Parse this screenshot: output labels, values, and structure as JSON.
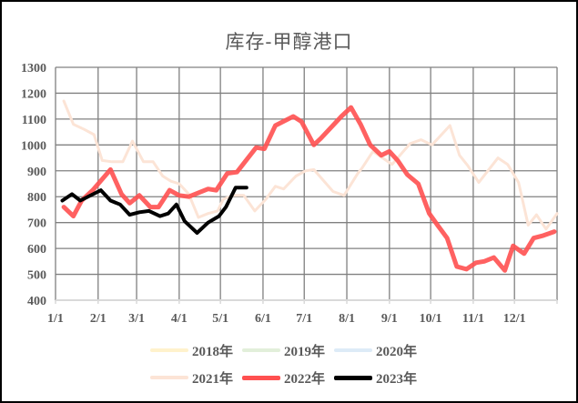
{
  "chart_data": {
    "type": "line",
    "title": "库存-甲醇港口",
    "xlabel": "",
    "ylabel": "",
    "ylim": [
      400,
      1300
    ],
    "yticks": [
      400,
      500,
      600,
      700,
      800,
      900,
      1000,
      1100,
      1200,
      1300
    ],
    "xticks": [
      "1/1",
      "2/1",
      "3/1",
      "4/1",
      "5/1",
      "6/1",
      "7/1",
      "8/1",
      "9/1",
      "10/1",
      "11/1",
      "12/1"
    ],
    "xtick_days": [
      0,
      31,
      59,
      90,
      120,
      151,
      181,
      212,
      243,
      273,
      304,
      334
    ],
    "x_unit": "day_of_year",
    "grid": true,
    "legend_position": "bottom",
    "series": [
      {
        "name": "2018年",
        "color": "#FFF2CC",
        "width": 3,
        "points": []
      },
      {
        "name": "2019年",
        "color": "#E2EFDA",
        "width": 3,
        "points": []
      },
      {
        "name": "2020年",
        "color": "#DDEBF7",
        "width": 3,
        "points": []
      },
      {
        "name": "2021年",
        "color": "#FCE4D6",
        "width": 3,
        "points": [
          [
            6,
            1170
          ],
          [
            13,
            1080
          ],
          [
            21,
            1060
          ],
          [
            28,
            1040
          ],
          [
            34,
            940
          ],
          [
            41,
            935
          ],
          [
            49,
            935
          ],
          [
            56,
            1015
          ],
          [
            64,
            935
          ],
          [
            71,
            935
          ],
          [
            78,
            880
          ],
          [
            84,
            860
          ],
          [
            90,
            850
          ],
          [
            97,
            810
          ],
          [
            104,
            720
          ],
          [
            111,
            735
          ],
          [
            118,
            745
          ],
          [
            122,
            790
          ],
          [
            129,
            805
          ],
          [
            137,
            805
          ],
          [
            145,
            745
          ],
          [
            153,
            790
          ],
          [
            160,
            840
          ],
          [
            166,
            830
          ],
          [
            175,
            880
          ],
          [
            182,
            900
          ],
          [
            188,
            905
          ],
          [
            202,
            820
          ],
          [
            210,
            805
          ],
          [
            220,
            890
          ],
          [
            223,
            910
          ],
          [
            231,
            975
          ],
          [
            245,
            925
          ],
          [
            258,
            1005
          ],
          [
            266,
            1020
          ],
          [
            274,
            1000
          ],
          [
            287,
            1075
          ],
          [
            294,
            960
          ],
          [
            300,
            920
          ],
          [
            308,
            855
          ],
          [
            322,
            950
          ],
          [
            329,
            925
          ],
          [
            337,
            855
          ],
          [
            344,
            690
          ],
          [
            350,
            730
          ],
          [
            357,
            675
          ],
          [
            365,
            735
          ]
        ]
      },
      {
        "name": "2022年",
        "color": "#FF5050",
        "width": 5,
        "points": [
          [
            6,
            760
          ],
          [
            13,
            725
          ],
          [
            19,
            785
          ],
          [
            27,
            825
          ],
          [
            40,
            905
          ],
          [
            48,
            810
          ],
          [
            54,
            775
          ],
          [
            61,
            805
          ],
          [
            69,
            760
          ],
          [
            75,
            760
          ],
          [
            83,
            825
          ],
          [
            90,
            805
          ],
          [
            97,
            800
          ],
          [
            111,
            830
          ],
          [
            117,
            825
          ],
          [
            125,
            890
          ],
          [
            132,
            895
          ],
          [
            146,
            990
          ],
          [
            152,
            985
          ],
          [
            160,
            1075
          ],
          [
            173,
            1110
          ],
          [
            179,
            1090
          ],
          [
            188,
            1000
          ],
          [
            193,
            1025
          ],
          [
            208,
            1110
          ],
          [
            215,
            1145
          ],
          [
            222,
            1080
          ],
          [
            229,
            1000
          ],
          [
            237,
            960
          ],
          [
            243,
            975
          ],
          [
            249,
            940
          ],
          [
            256,
            885
          ],
          [
            264,
            850
          ],
          [
            272,
            735
          ],
          [
            278,
            690
          ],
          [
            285,
            640
          ],
          [
            292,
            530
          ],
          [
            299,
            520
          ],
          [
            306,
            545
          ],
          [
            312,
            550
          ],
          [
            319,
            565
          ],
          [
            327,
            515
          ],
          [
            333,
            610
          ],
          [
            341,
            580
          ],
          [
            348,
            640
          ],
          [
            355,
            650
          ],
          [
            363,
            665
          ]
        ]
      },
      {
        "name": "2023年",
        "color": "#000000",
        "width": 4,
        "points": [
          [
            5,
            785
          ],
          [
            12,
            810
          ],
          [
            18,
            785
          ],
          [
            33,
            825
          ],
          [
            40,
            785
          ],
          [
            47,
            770
          ],
          [
            54,
            730
          ],
          [
            61,
            740
          ],
          [
            68,
            745
          ],
          [
            76,
            725
          ],
          [
            82,
            735
          ],
          [
            88,
            770
          ],
          [
            94,
            705
          ],
          [
            103,
            660
          ],
          [
            111,
            700
          ],
          [
            119,
            725
          ],
          [
            124,
            760
          ],
          [
            131,
            835
          ],
          [
            139,
            835
          ]
        ]
      }
    ]
  },
  "legend": {
    "items": [
      {
        "label": "2018年",
        "color": "#FFF2CC"
      },
      {
        "label": "2019年",
        "color": "#E2EFDA"
      },
      {
        "label": "2020年",
        "color": "#DDEBF7"
      },
      {
        "label": "2021年",
        "color": "#FCE4D6"
      },
      {
        "label": "2022年",
        "color": "#FF5050"
      },
      {
        "label": "2023年",
        "color": "#000000"
      }
    ]
  }
}
